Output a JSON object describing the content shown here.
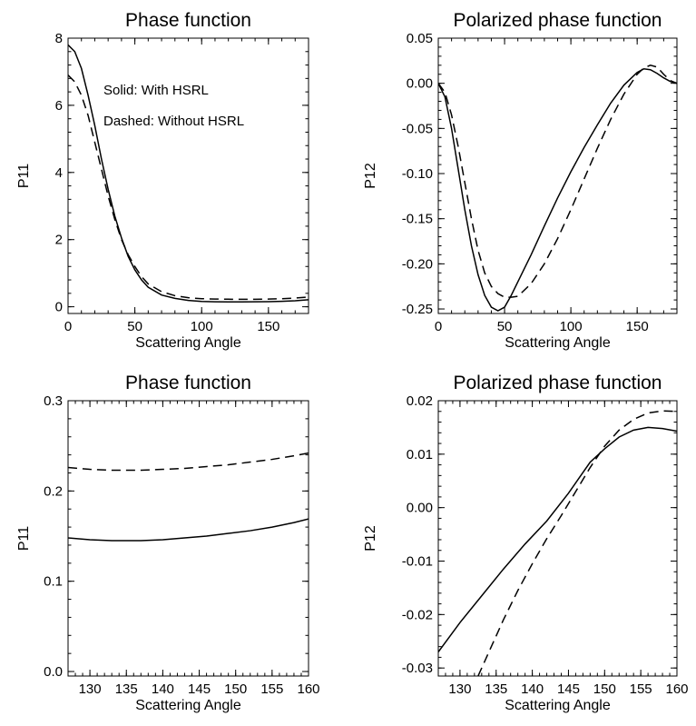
{
  "chart_data": [
    {
      "type": "line",
      "title": "Phase function",
      "xlabel": "Scattering Angle",
      "ylabel": "P11",
      "xlim": [
        0,
        180
      ],
      "ylim": [
        -0.2,
        8.0
      ],
      "xticks": [
        0,
        50,
        100,
        150
      ],
      "xtick_labels": [
        "0",
        "50",
        "100",
        "150"
      ],
      "yticks": [
        0,
        2,
        4,
        6,
        8
      ],
      "ytick_labels": [
        "0",
        "2",
        "4",
        "6",
        "8"
      ],
      "annotations": [
        "Solid: With HSRL",
        "Dashed: Without HSRL"
      ],
      "series": [
        {
          "style": "solid",
          "x": [
            0,
            5,
            10,
            15,
            20,
            25,
            30,
            35,
            40,
            45,
            50,
            55,
            60,
            70,
            80,
            90,
            100,
            110,
            120,
            130,
            140,
            150,
            160,
            170,
            180
          ],
          "y": [
            7.8,
            7.6,
            7.1,
            6.3,
            5.4,
            4.4,
            3.5,
            2.7,
            2.05,
            1.5,
            1.1,
            0.8,
            0.58,
            0.35,
            0.25,
            0.19,
            0.16,
            0.15,
            0.145,
            0.145,
            0.148,
            0.152,
            0.162,
            0.18,
            0.21
          ]
        },
        {
          "style": "dashed",
          "x": [
            0,
            5,
            10,
            15,
            20,
            25,
            30,
            35,
            40,
            45,
            50,
            55,
            60,
            70,
            80,
            90,
            100,
            110,
            120,
            130,
            140,
            150,
            160,
            170,
            180
          ],
          "y": [
            6.9,
            6.7,
            6.3,
            5.7,
            4.9,
            4.1,
            3.3,
            2.6,
            2.0,
            1.55,
            1.2,
            0.9,
            0.68,
            0.45,
            0.33,
            0.27,
            0.24,
            0.23,
            0.225,
            0.222,
            0.224,
            0.228,
            0.24,
            0.26,
            0.29
          ]
        }
      ]
    },
    {
      "type": "line",
      "title": "Polarized phase function",
      "xlabel": "Scattering Angle",
      "ylabel": "P12",
      "xlim": [
        0,
        180
      ],
      "ylim": [
        -0.255,
        0.05
      ],
      "xticks": [
        0,
        50,
        100,
        150
      ],
      "xtick_labels": [
        "0",
        "50",
        "100",
        "150"
      ],
      "yticks": [
        0.05,
        0.0,
        -0.05,
        -0.1,
        -0.15,
        -0.2,
        -0.25
      ],
      "ytick_labels": [
        "0.05",
        "0.00",
        "-0.05",
        "-0.10",
        "-0.15",
        "-0.20",
        "-0.25"
      ],
      "series": [
        {
          "style": "solid",
          "x": [
            0,
            5,
            10,
            15,
            20,
            25,
            30,
            35,
            40,
            45,
            50,
            55,
            60,
            70,
            80,
            90,
            100,
            110,
            120,
            130,
            140,
            150,
            155,
            160,
            165,
            170,
            175,
            180
          ],
          "y": [
            0.0,
            -0.015,
            -0.05,
            -0.095,
            -0.14,
            -0.18,
            -0.212,
            -0.235,
            -0.248,
            -0.252,
            -0.248,
            -0.235,
            -0.22,
            -0.19,
            -0.158,
            -0.127,
            -0.098,
            -0.071,
            -0.046,
            -0.022,
            -0.002,
            0.012,
            0.016,
            0.015,
            0.011,
            0.006,
            0.002,
            0.0
          ]
        },
        {
          "style": "dashed",
          "x": [
            0,
            5,
            10,
            15,
            20,
            25,
            30,
            35,
            40,
            45,
            50,
            55,
            60,
            70,
            80,
            90,
            100,
            110,
            120,
            130,
            140,
            150,
            155,
            160,
            165,
            170,
            175,
            180
          ],
          "y": [
            0.0,
            -0.01,
            -0.035,
            -0.07,
            -0.11,
            -0.15,
            -0.185,
            -0.21,
            -0.225,
            -0.233,
            -0.237,
            -0.237,
            -0.236,
            -0.222,
            -0.2,
            -0.172,
            -0.14,
            -0.106,
            -0.072,
            -0.04,
            -0.012,
            0.01,
            0.017,
            0.02,
            0.018,
            0.01,
            0.003,
            0.0
          ]
        }
      ]
    },
    {
      "type": "line",
      "title": "Phase function",
      "xlabel": "Scattering Angle",
      "ylabel": "P11",
      "xlim": [
        127,
        160
      ],
      "ylim": [
        -0.005,
        0.3
      ],
      "xticks": [
        130,
        135,
        140,
        145,
        150,
        155,
        160
      ],
      "xtick_labels": [
        "130",
        "135",
        "140",
        "145",
        "150",
        "155",
        "160"
      ],
      "yticks": [
        0.0,
        0.1,
        0.2,
        0.3
      ],
      "ytick_labels": [
        "0.0",
        "0.1",
        "0.2",
        "0.3"
      ],
      "series": [
        {
          "style": "solid",
          "x": [
            127,
            130,
            133,
            135,
            137,
            140,
            143,
            146,
            149,
            152,
            155,
            158,
            160
          ],
          "y": [
            0.148,
            0.146,
            0.145,
            0.145,
            0.145,
            0.146,
            0.148,
            0.15,
            0.153,
            0.156,
            0.16,
            0.165,
            0.169
          ]
        },
        {
          "style": "dashed",
          "x": [
            127,
            130,
            133,
            135,
            137,
            140,
            143,
            146,
            149,
            152,
            155,
            158,
            160
          ],
          "y": [
            0.226,
            0.224,
            0.223,
            0.223,
            0.223,
            0.224,
            0.225,
            0.227,
            0.229,
            0.232,
            0.235,
            0.239,
            0.242
          ]
        }
      ]
    },
    {
      "type": "line",
      "title": "Polarized phase function",
      "xlabel": "Scattering Angle",
      "ylabel": "P12",
      "xlim": [
        127,
        160
      ],
      "ylim": [
        -0.0315,
        0.02
      ],
      "xticks": [
        130,
        135,
        140,
        145,
        150,
        155,
        160
      ],
      "xtick_labels": [
        "130",
        "135",
        "140",
        "145",
        "150",
        "155",
        "160"
      ],
      "yticks": [
        0.02,
        0.01,
        0.0,
        -0.01,
        -0.02,
        -0.03
      ],
      "ytick_labels": [
        "0.02",
        "0.01",
        "0.00",
        "-0.01",
        "-0.02",
        "-0.03"
      ],
      "series": [
        {
          "style": "solid",
          "x": [
            127,
            130,
            133,
            136,
            139,
            142,
            145,
            148,
            150,
            152,
            154,
            156,
            158,
            160
          ],
          "y": [
            -0.027,
            -0.0215,
            -0.0165,
            -0.0115,
            -0.0068,
            -0.0025,
            0.0027,
            0.0085,
            0.011,
            0.0132,
            0.0145,
            0.015,
            0.0148,
            0.0143
          ]
        },
        {
          "style": "dashed",
          "x": [
            132.5,
            134,
            136,
            138,
            140,
            142,
            144,
            146,
            148,
            150,
            152,
            154,
            156,
            158,
            160
          ],
          "y": [
            -0.0315,
            -0.027,
            -0.021,
            -0.0155,
            -0.0105,
            -0.0058,
            -0.0015,
            0.003,
            0.0075,
            0.0115,
            0.0145,
            0.0165,
            0.0177,
            0.0181,
            0.018
          ]
        }
      ]
    }
  ]
}
